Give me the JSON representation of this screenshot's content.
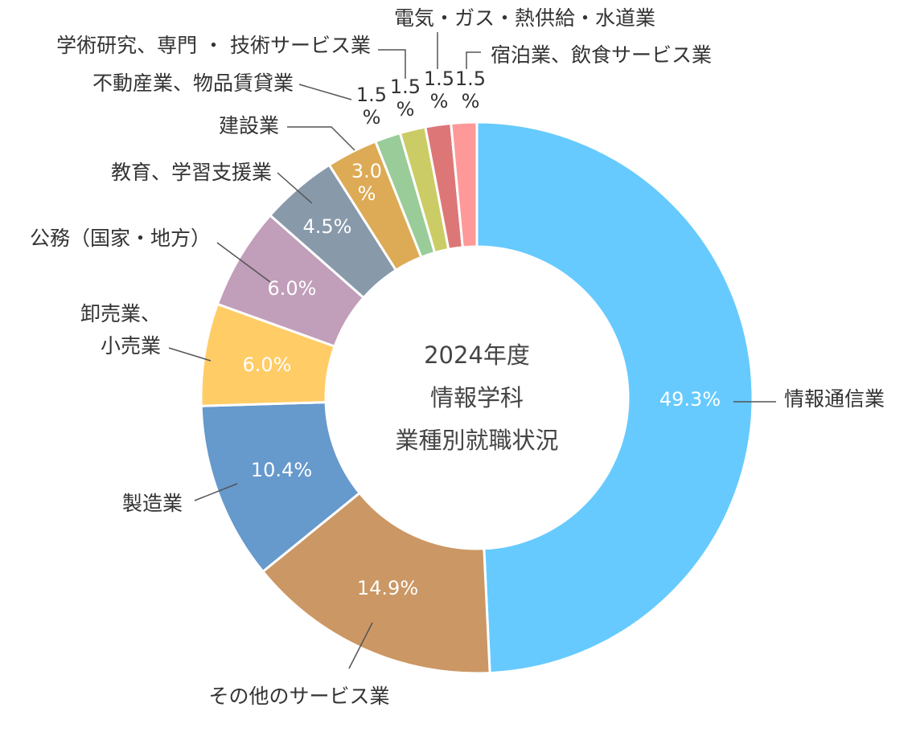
{
  "chart_data": {
    "type": "pie",
    "style": "donut",
    "title_lines": [
      "2024年度",
      "情報学科",
      "業種別就職状況"
    ],
    "slices": [
      {
        "label": "情報通信業",
        "value": 49.3,
        "value_label": "49.3%",
        "color": "#66CAFE"
      },
      {
        "label": "その他のサービス業",
        "value": 14.9,
        "value_label": "14.9%",
        "color": "#CB9764"
      },
      {
        "label": "製造業",
        "value": 10.4,
        "value_label": "10.4%",
        "color": "#6699CC"
      },
      {
        "label": "卸売業、小売業",
        "label_lines": [
          "卸売業、",
          "小売業"
        ],
        "value": 6.0,
        "value_label": "6.0%",
        "color": "#FFCC66"
      },
      {
        "label": "公務（国家・地方）",
        "value": 6.0,
        "value_label": "6.0%",
        "color": "#C19EB9"
      },
      {
        "label": "教育、学習支援業",
        "value": 4.5,
        "value_label": "4.5%",
        "color": "#8899AA"
      },
      {
        "label": "建設業",
        "value": 3.0,
        "value_label": "3.0%",
        "value_lines": [
          "3.0",
          "%"
        ],
        "color": "#DDAA55"
      },
      {
        "label": "不動産業、物品賃貸業",
        "value": 1.5,
        "value_label": "1.5%",
        "value_lines": [
          "1.5",
          "%"
        ],
        "color": "#99CC99"
      },
      {
        "label": "学術研究、専門 ・ 技術サービス業",
        "value": 1.5,
        "value_label": "1.5%",
        "value_lines": [
          "1.5",
          "%"
        ],
        "color": "#CCCC66"
      },
      {
        "label": "電気・ガス・熱供給・水道業",
        "value": 1.5,
        "value_label": "1.5%",
        "value_lines": [
          "1.5",
          "%"
        ],
        "color": "#DD7777"
      },
      {
        "label": "宿泊業、飲食サービス業",
        "value": 1.5,
        "value_label": "1.5%",
        "value_lines": [
          "1.5",
          "%"
        ],
        "color": "#FF9999"
      }
    ]
  }
}
